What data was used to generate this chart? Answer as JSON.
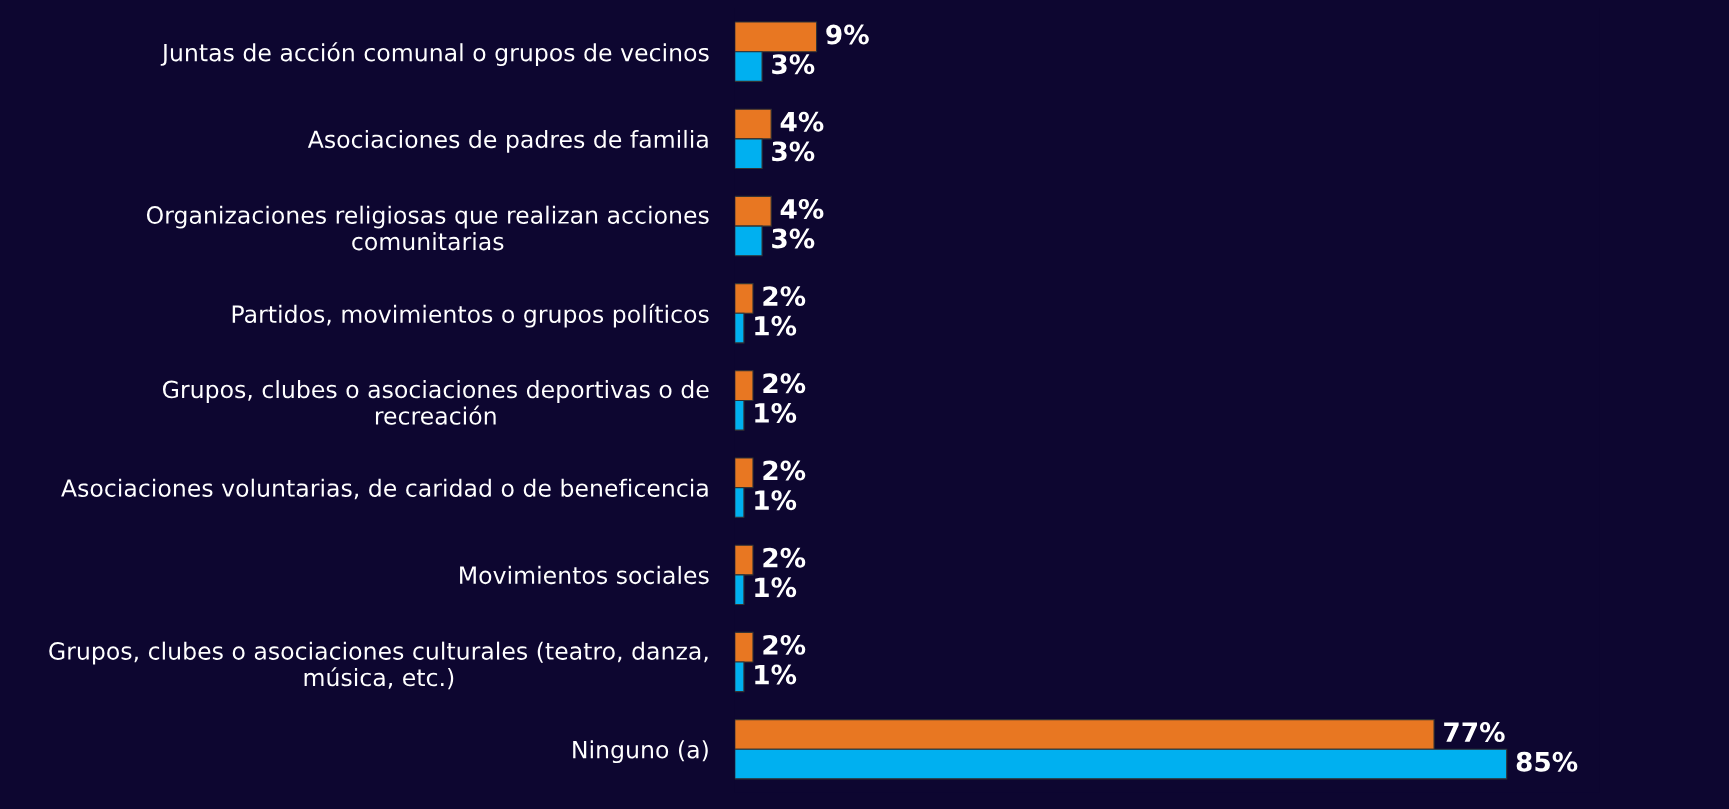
{
  "chart_data": {
    "type": "bar",
    "orientation": "horizontal",
    "data_labels": true,
    "grid": false,
    "legend": false,
    "categories": [
      "Juntas de acción comunal o grupos de vecinos",
      "Asociaciones de padres de familia",
      "Organizaciones religiosas que realizan acciones\ncomunitarias",
      "Partidos, movimientos o grupos políticos",
      "Grupos, clubes o asociaciones deportivas o de\nrecreación",
      "Asociaciones voluntarias, de caridad o de beneficencia",
      "Movimientos sociales",
      "Grupos, clubes o asociaciones culturales (teatro, danza,\nmúsica, etc.)",
      "Ninguno (a)"
    ],
    "series": [
      {
        "color": "#e87722",
        "values": [
          9,
          4,
          4,
          2,
          2,
          2,
          2,
          2,
          77
        ],
        "value_labels": [
          "9%",
          "4%",
          "4%",
          "2%",
          "2%",
          "2%",
          "2%",
          "2%",
          "77%"
        ]
      },
      {
        "color": "#00b0f0",
        "values": [
          3,
          3,
          3,
          1,
          1,
          1,
          1,
          1,
          85
        ],
        "value_labels": [
          "3%",
          "3%",
          "3%",
          "1%",
          "1%",
          "1%",
          "1%",
          "1%",
          "85%"
        ]
      }
    ]
  }
}
